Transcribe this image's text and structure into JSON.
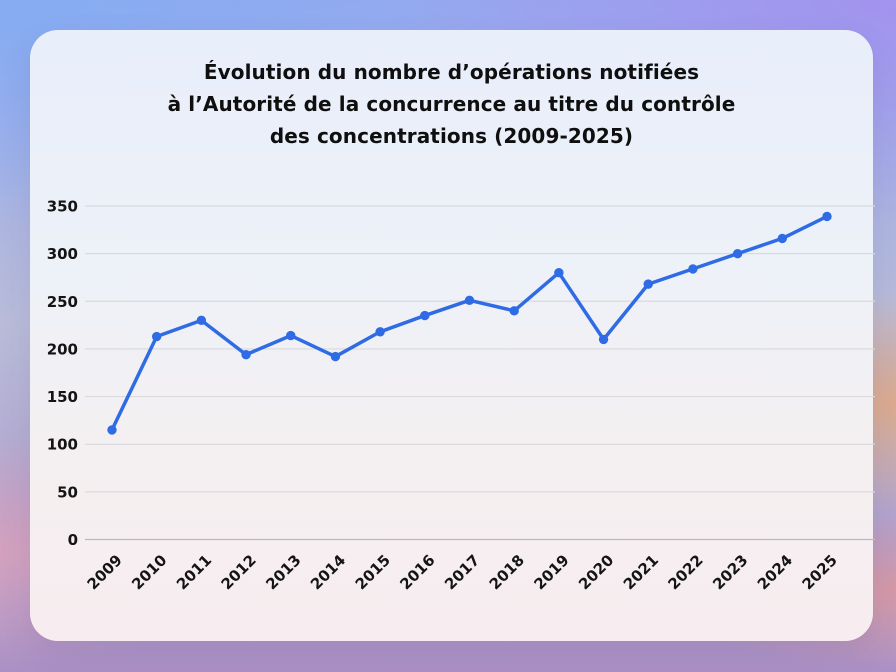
{
  "title": {
    "lines": [
      "Évolution du nombre d’opérations notifiées",
      "à l’Autorité de la concurrence au titre du contrôle",
      "des concentrations (2009-2025)"
    ]
  },
  "chart_data": {
    "type": "line",
    "title": "Évolution du nombre d’opérations notifiées à l’Autorité de la concurrence au titre du contrôle des concentrations (2009-2025)",
    "x": [
      "2009",
      "2010",
      "2011",
      "2012",
      "2013",
      "2014",
      "2015",
      "2016",
      "2017",
      "2018",
      "2019",
      "2020",
      "2021",
      "2022",
      "2023",
      "2024",
      "2025"
    ],
    "values": [
      115,
      213,
      230,
      194,
      214,
      192,
      218,
      235,
      251,
      240,
      280,
      210,
      268,
      284,
      300,
      316,
      339
    ],
    "ylim": [
      0,
      350
    ],
    "yticks": [
      0,
      50,
      100,
      150,
      200,
      250,
      300,
      350
    ],
    "grid": "horizontal",
    "legend": "none",
    "colors": {
      "line": "#2e6be4",
      "point": "#2e6be4",
      "grid": "#d9dade",
      "zero_line": "#b9bac0",
      "tick_text": "#141414",
      "title_text": "#0f0f10"
    }
  }
}
